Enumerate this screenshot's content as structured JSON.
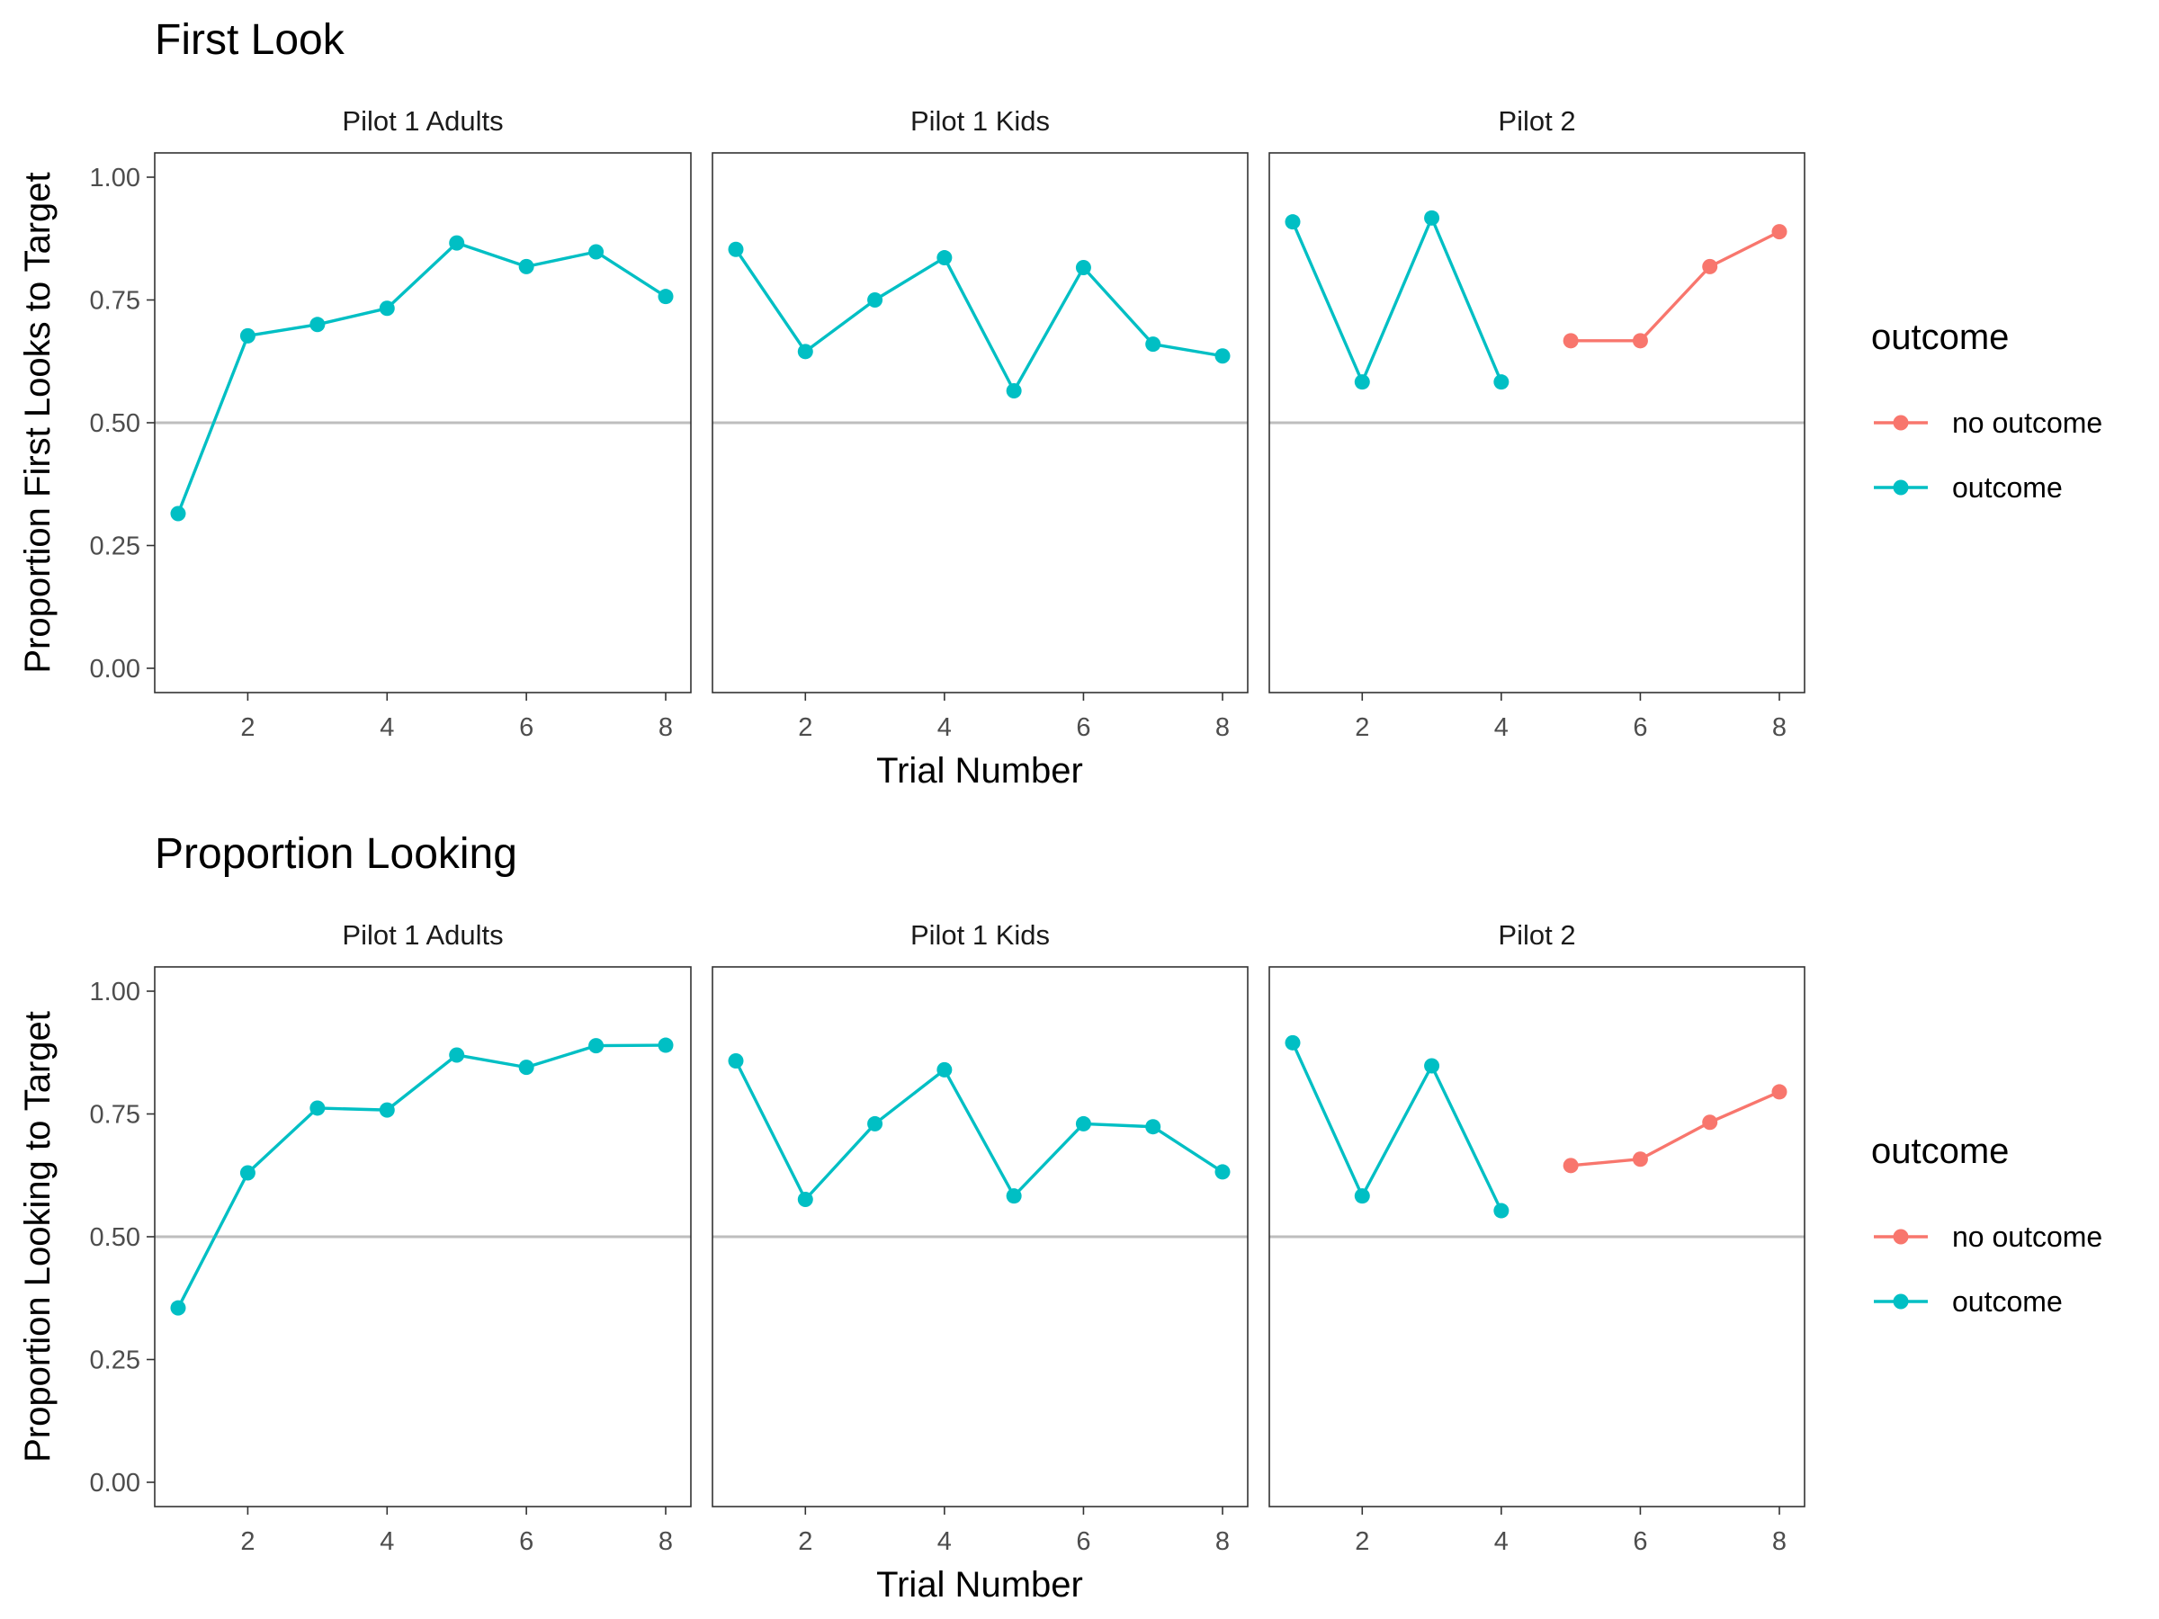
{
  "chart_data": [
    {
      "type": "line",
      "title": "First Look",
      "ylabel": "Proportion First Looks to Target",
      "xlabel": "Trial Number",
      "ylim": [
        0,
        1
      ],
      "xlim": [
        1,
        8
      ],
      "yticks": [
        "0.00",
        "0.25",
        "0.50",
        "0.75",
        "1.00"
      ],
      "xticks": [
        "2",
        "4",
        "6",
        "8"
      ],
      "reference_line": 0.5,
      "grid": false,
      "legend": {
        "title": "outcome",
        "position": "right",
        "entries": [
          {
            "label": "no outcome",
            "color": "#F8766D"
          },
          {
            "label": "outcome",
            "color": "#00BFC4"
          }
        ]
      },
      "facets": [
        {
          "label": "Pilot 1 Adults",
          "series": [
            {
              "name": "outcome",
              "color": "#00BFC4",
              "x": [
                1,
                2,
                3,
                4,
                5,
                6,
                7,
                8
              ],
              "y": [
                0.315,
                0.677,
                0.7,
                0.733,
                0.866,
                0.818,
                0.848,
                0.757
              ]
            }
          ]
        },
        {
          "label": "Pilot 1 Kids",
          "series": [
            {
              "name": "outcome",
              "color": "#00BFC4",
              "x": [
                1,
                2,
                3,
                4,
                5,
                6,
                7,
                8
              ],
              "y": [
                0.853,
                0.645,
                0.75,
                0.836,
                0.565,
                0.816,
                0.66,
                0.636
              ]
            }
          ]
        },
        {
          "label": "Pilot 2",
          "series": [
            {
              "name": "outcome",
              "color": "#00BFC4",
              "x": [
                1,
                2,
                3,
                4
              ],
              "y": [
                0.909,
                0.583,
                0.917,
                0.583
              ]
            },
            {
              "name": "no outcome",
              "color": "#F8766D",
              "x": [
                5,
                6,
                7,
                8
              ],
              "y": [
                0.667,
                0.667,
                0.818,
                0.889
              ]
            }
          ]
        }
      ]
    },
    {
      "type": "line",
      "title": "Proportion Looking",
      "ylabel": "Proportion Looking to Target",
      "xlabel": "Trial Number",
      "ylim": [
        0,
        1
      ],
      "xlim": [
        1,
        8
      ],
      "yticks": [
        "0.00",
        "0.25",
        "0.50",
        "0.75",
        "1.00"
      ],
      "xticks": [
        "2",
        "4",
        "6",
        "8"
      ],
      "reference_line": 0.5,
      "grid": false,
      "legend": {
        "title": "outcome",
        "position": "right",
        "entries": [
          {
            "label": "no outcome",
            "color": "#F8766D"
          },
          {
            "label": "outcome",
            "color": "#00BFC4"
          }
        ]
      },
      "facets": [
        {
          "label": "Pilot 1 Adults",
          "series": [
            {
              "name": "outcome",
              "color": "#00BFC4",
              "x": [
                1,
                2,
                3,
                4,
                5,
                6,
                7,
                8
              ],
              "y": [
                0.355,
                0.63,
                0.762,
                0.758,
                0.87,
                0.845,
                0.889,
                0.89
              ]
            }
          ]
        },
        {
          "label": "Pilot 1 Kids",
          "series": [
            {
              "name": "outcome",
              "color": "#00BFC4",
              "x": [
                1,
                2,
                3,
                4,
                5,
                6,
                7,
                8
              ],
              "y": [
                0.858,
                0.576,
                0.73,
                0.84,
                0.583,
                0.73,
                0.724,
                0.632
              ]
            }
          ]
        },
        {
          "label": "Pilot 2",
          "series": [
            {
              "name": "outcome",
              "color": "#00BFC4",
              "x": [
                1,
                2,
                3,
                4
              ],
              "y": [
                0.895,
                0.583,
                0.848,
                0.553
              ]
            },
            {
              "name": "no outcome",
              "color": "#F8766D",
              "x": [
                5,
                6,
                7,
                8
              ],
              "y": [
                0.645,
                0.658,
                0.733,
                0.795
              ]
            }
          ]
        }
      ]
    }
  ]
}
